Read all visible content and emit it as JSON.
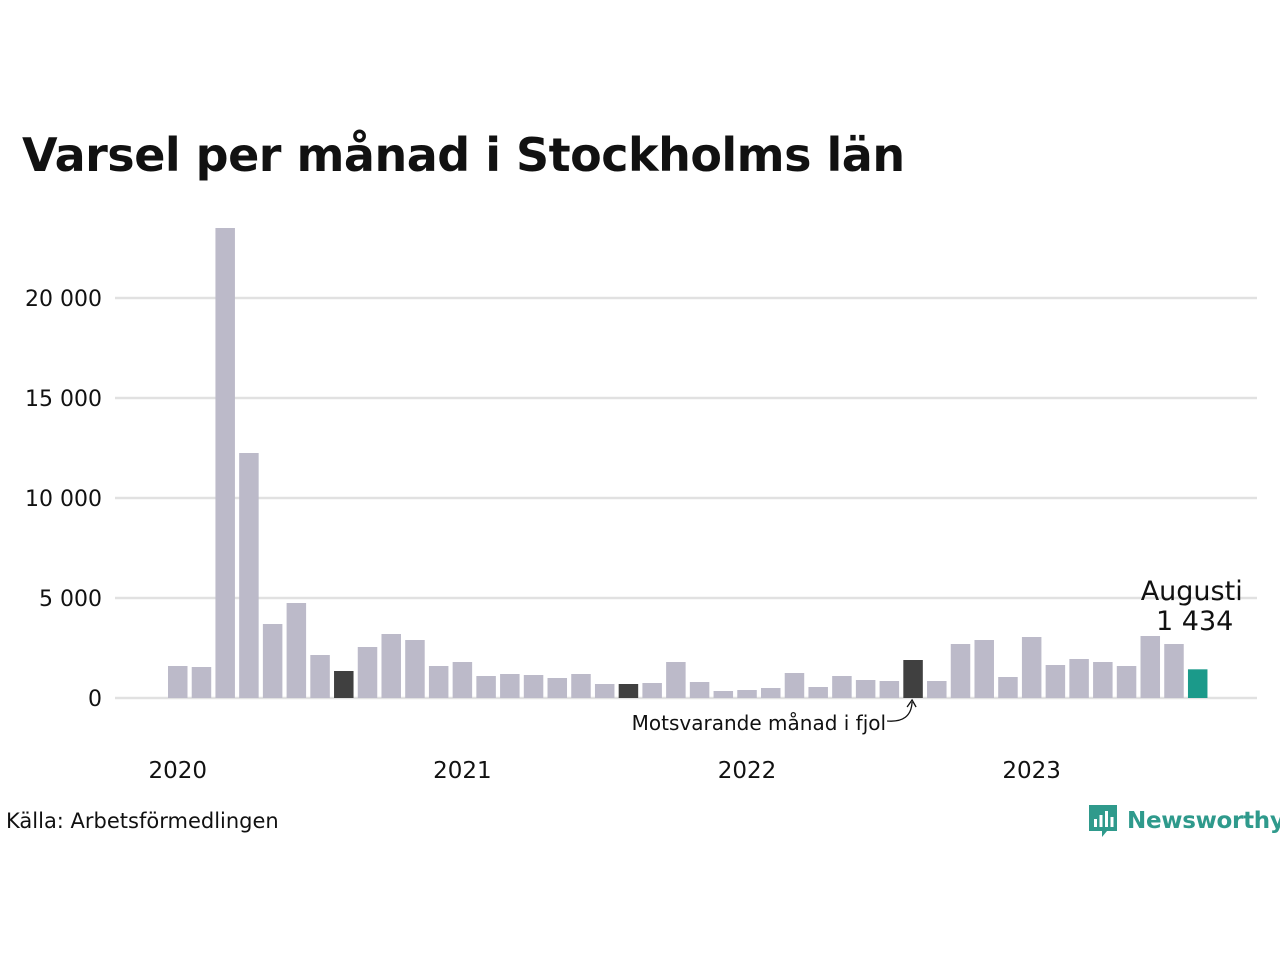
{
  "title": "Varsel per månad i Stockholms län",
  "source": "Källa: Arbetsförmedlingen",
  "brand": {
    "name": "Newsworthy",
    "icon": "bar-chart-speech-bubble-icon",
    "color": "#2f9a8c"
  },
  "colors": {
    "default_bar": "#bcbac9",
    "comparison_bar": "#404040",
    "current_bar": "#1b9a8a",
    "grid": "#e1e1e1"
  },
  "chart_data": {
    "type": "bar",
    "title": "Varsel per månad i Stockholms län",
    "xlabel": "",
    "ylabel": "",
    "ylim": [
      0,
      23500
    ],
    "yticks": [
      0,
      5000,
      10000,
      15000,
      20000
    ],
    "ytick_labels": [
      "0",
      "5 000",
      "10 000",
      "15 000",
      "20 000"
    ],
    "x_year_labels": [
      "2020",
      "2021",
      "2022",
      "2023"
    ],
    "grid": true,
    "categories": [
      "2020-01",
      "2020-02",
      "2020-03",
      "2020-04",
      "2020-05",
      "2020-06",
      "2020-07",
      "2020-08",
      "2020-09",
      "2020-10",
      "2020-11",
      "2020-12",
      "2021-01",
      "2021-02",
      "2021-03",
      "2021-04",
      "2021-05",
      "2021-06",
      "2021-07",
      "2021-08",
      "2021-09",
      "2021-10",
      "2021-11",
      "2021-12",
      "2022-01",
      "2022-02",
      "2022-03",
      "2022-04",
      "2022-05",
      "2022-06",
      "2022-07",
      "2022-08",
      "2022-09",
      "2022-10",
      "2022-11",
      "2022-12",
      "2023-01",
      "2023-02",
      "2023-03",
      "2023-04",
      "2023-05",
      "2023-06",
      "2023-07",
      "2023-08"
    ],
    "values": [
      1600,
      1550,
      23500,
      12250,
      3700,
      4750,
      2150,
      1350,
      2550,
      3200,
      2900,
      1600,
      1800,
      1100,
      1200,
      1150,
      1000,
      1200,
      700,
      700,
      750,
      1800,
      800,
      350,
      400,
      500,
      1250,
      550,
      1100,
      900,
      850,
      1900,
      850,
      2700,
      2900,
      1050,
      3050,
      1650,
      1950,
      1800,
      1600,
      3100,
      2700,
      1434
    ],
    "comparison_months": [
      "2020-08",
      "2021-08",
      "2022-08"
    ],
    "highlight": {
      "month": "2023-08",
      "label": "Augusti",
      "value_label": "1 434"
    },
    "annotations": [
      {
        "text": "Motsvarande månad i fjol",
        "target": "2022-08"
      }
    ]
  }
}
